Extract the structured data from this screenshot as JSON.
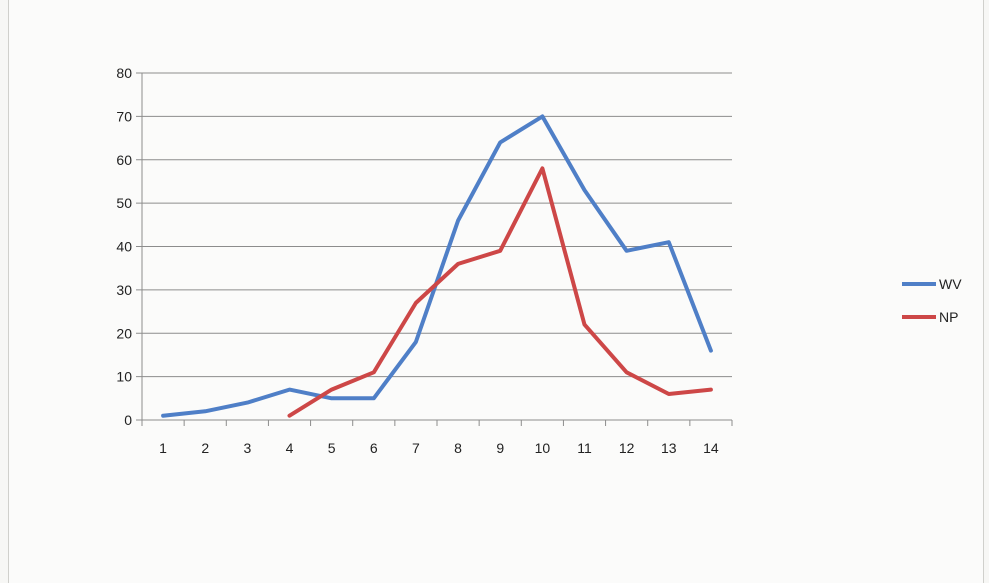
{
  "chart_data": {
    "type": "line",
    "title": "",
    "xlabel": "",
    "ylabel": "",
    "x": [
      1,
      2,
      3,
      4,
      5,
      6,
      7,
      8,
      9,
      10,
      11,
      12,
      13,
      14
    ],
    "ylim": [
      0,
      80
    ],
    "y_ticks": [
      0,
      10,
      20,
      30,
      40,
      50,
      60,
      70,
      80
    ],
    "x_tick_labels": [
      "1",
      "2",
      "3",
      "4",
      "5",
      "6",
      "7",
      "8",
      "9",
      "10",
      "11",
      "12",
      "13",
      "14"
    ],
    "grid": true,
    "legend_position": "right",
    "series": [
      {
        "name": "WV",
        "color": "#4f7fc7",
        "values": [
          1,
          2,
          4,
          7,
          5,
          5,
          18,
          46,
          64,
          70,
          53,
          39,
          41,
          16
        ]
      },
      {
        "name": "NP",
        "color": "#cd4747",
        "values": [
          null,
          null,
          null,
          1,
          7,
          11,
          27,
          36,
          39,
          58,
          22,
          11,
          6,
          7
        ]
      }
    ]
  }
}
